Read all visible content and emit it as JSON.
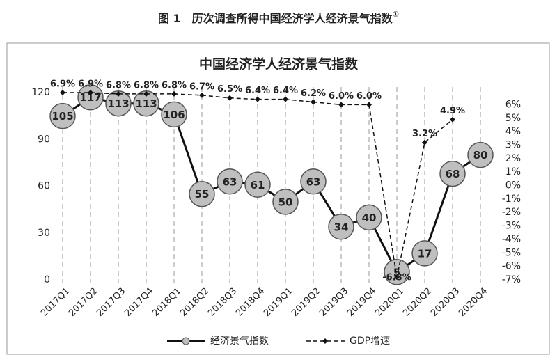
{
  "figure_title": "图 1　历次调查所得中国经济学人经济景气指数",
  "figure_title_note": "①",
  "chart_data": {
    "type": "line",
    "title": "中国经济学人经济景气指数",
    "categories": [
      "2017Q1",
      "2017Q2",
      "2017Q3",
      "2017Q4",
      "2018Q1",
      "2018Q2",
      "2018Q3",
      "2018Q4",
      "2019Q1",
      "2019Q2",
      "2019Q3",
      "2019Q4",
      "2020Q1",
      "2020Q2",
      "2020Q3",
      "2020Q4"
    ],
    "series": [
      {
        "name": "经济景气指数",
        "color": "#111111",
        "marker_color": "#bfbfbf",
        "values": [
          105,
          117,
          113,
          113,
          106,
          55,
          63,
          61,
          50,
          63,
          34,
          40,
          5,
          17,
          68,
          80
        ]
      },
      {
        "name": "GDP增速",
        "color": "#111111",
        "axis": "y2",
        "dashed": true,
        "values": [
          6.9,
          6.9,
          6.8,
          6.8,
          6.8,
          6.7,
          6.5,
          6.4,
          6.4,
          6.2,
          6.0,
          6.0,
          -6.8,
          3.2,
          4.9,
          null
        ],
        "value_labels": [
          "6.9%",
          "6.9%",
          "6.8%",
          "6.8%",
          "6.8%",
          "6.7%",
          "6.5%",
          "6.4%",
          "6.4%",
          "6.2%",
          "6.0%",
          "6.0%",
          "-6.8%",
          "3.2%",
          "4.9%",
          null
        ]
      }
    ],
    "ylim": [
      0,
      120
    ],
    "yticks": [
      0,
      30,
      60,
      90,
      120
    ],
    "y2lim": [
      -7,
      6.9
    ],
    "y2ticks": [
      {
        "value": 6,
        "label": "6%"
      },
      {
        "value": 5,
        "label": "5%"
      },
      {
        "value": 4,
        "label": "4%"
      },
      {
        "value": 3,
        "label": "3%"
      },
      {
        "value": 2,
        "label": "2%"
      },
      {
        "value": 1,
        "label": "1%"
      },
      {
        "value": 0,
        "label": "0%"
      },
      {
        "value": -1,
        "label": "-1%"
      },
      {
        "value": -2,
        "label": "-2%"
      },
      {
        "value": -3,
        "label": "-3%"
      },
      {
        "value": -4,
        "label": "-4%"
      },
      {
        "value": -5,
        "label": "-5%"
      },
      {
        "value": -6,
        "label": "-6%"
      },
      {
        "value": -7,
        "label": "-7%"
      }
    ],
    "legend": "bottom"
  }
}
